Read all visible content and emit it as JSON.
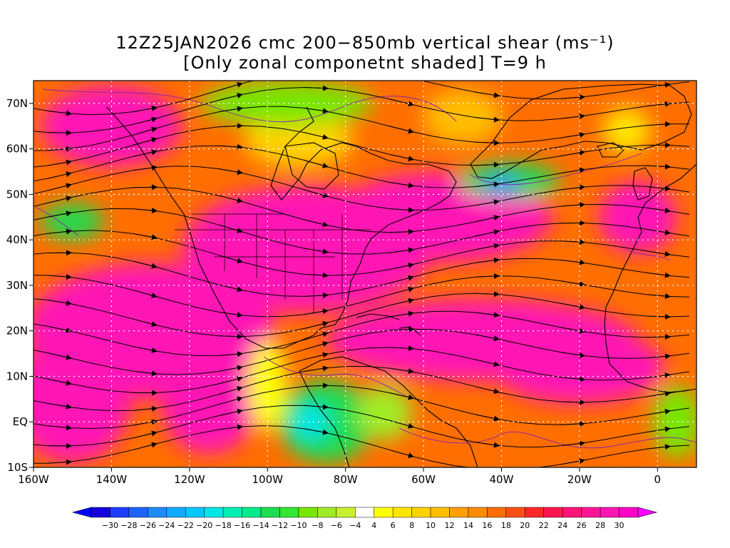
{
  "title": {
    "line1": "12Z25JAN2026 cmc 200−850mb vertical shear (ms⁻¹)",
    "line2": "[Only zonal componetnt shaded] T=9 h"
  },
  "map": {
    "lon_range": [
      -160,
      10
    ],
    "lat_range": [
      -10,
      75
    ],
    "x_ticks": [
      {
        "lon": -160,
        "label": "160W"
      },
      {
        "lon": -140,
        "label": "140W"
      },
      {
        "lon": -120,
        "label": "120W"
      },
      {
        "lon": -100,
        "label": "100W"
      },
      {
        "lon": -80,
        "label": "80W"
      },
      {
        "lon": -60,
        "label": "60W"
      },
      {
        "lon": -40,
        "label": "40W"
      },
      {
        "lon": -20,
        "label": "20W"
      },
      {
        "lon": 0,
        "label": "0"
      }
    ],
    "y_ticks": [
      {
        "lat": 70,
        "label": "70N"
      },
      {
        "lat": 60,
        "label": "60N"
      },
      {
        "lat": 50,
        "label": "50N"
      },
      {
        "lat": 40,
        "label": "40N"
      },
      {
        "lat": 30,
        "label": "30N"
      },
      {
        "lat": 20,
        "label": "20N"
      },
      {
        "lat": 10,
        "label": "10N"
      },
      {
        "lat": 0,
        "label": "EQ"
      },
      {
        "lat": -10,
        "label": "10S"
      }
    ],
    "grid": "dotted white"
  },
  "colorbar": {
    "labels": [
      "−30",
      "−28",
      "−26",
      "−24",
      "−22",
      "−20",
      "−18",
      "−16",
      "−14",
      "−12",
      "−10",
      "−8",
      "−6",
      "−4",
      "4",
      "6",
      "8",
      "10",
      "12",
      "14",
      "16",
      "18",
      "20",
      "22",
      "24",
      "26",
      "28",
      "30"
    ],
    "colors": [
      "#1400dc",
      "#1e3cff",
      "#1e64ff",
      "#1e8cff",
      "#10aaff",
      "#00c8ff",
      "#00e6e6",
      "#00f0b4",
      "#00eb8c",
      "#1edc50",
      "#32e632",
      "#78e600",
      "#a0eb28",
      "#c8f032",
      "#ffffff",
      "#ffff00",
      "#ffe600",
      "#ffd200",
      "#ffbe00",
      "#ffa000",
      "#ff8c00",
      "#ff6e00",
      "#ff5014",
      "#ff2828",
      "#ff1450",
      "#ff1478",
      "#ff1496",
      "#ff14b4",
      "#ff00c8"
    ],
    "low_arrow_color": "#0000ff",
    "high_arrow_color": "#ff00ff"
  },
  "shading": {
    "blobs": [
      {
        "lon": -130,
        "lat": 20,
        "rx": 32,
        "ry": 15,
        "color": "#ff14b4"
      },
      {
        "lon": -150,
        "lat": 5,
        "rx": 15,
        "ry": 14,
        "color": "#ff14b4"
      },
      {
        "lon": -115,
        "lat": 3,
        "rx": 12,
        "ry": 10,
        "color": "#ff14b4"
      },
      {
        "lon": -90,
        "lat": 38,
        "rx": 32,
        "ry": 14,
        "color": "#ff14b4"
      },
      {
        "lon": -55,
        "lat": 45,
        "rx": 28,
        "ry": 10,
        "color": "#ff14b4"
      },
      {
        "lon": -45,
        "lat": 18,
        "rx": 40,
        "ry": 9,
        "color": "#ff14b4"
      },
      {
        "lon": -20,
        "lat": 12,
        "rx": 22,
        "ry": 8,
        "color": "#ff14b4"
      },
      {
        "lon": -140,
        "lat": 65,
        "rx": 18,
        "ry": 9,
        "color": "#ff14b4"
      },
      {
        "lon": -5,
        "lat": 45,
        "rx": 10,
        "ry": 8,
        "color": "#ff14b4"
      },
      {
        "lon": -92,
        "lat": 62,
        "rx": 14,
        "ry": 6,
        "color": "#ffd200"
      },
      {
        "lon": -50,
        "lat": 67,
        "rx": 10,
        "ry": 6,
        "color": "#ffbe00"
      },
      {
        "lon": -95,
        "lat": 70,
        "rx": 22,
        "ry": 5,
        "color": "#78e600"
      },
      {
        "lon": -150,
        "lat": 44,
        "rx": 8,
        "ry": 4,
        "color": "#1edc50"
      },
      {
        "lon": -38,
        "lat": 53,
        "rx": 13,
        "ry": 4,
        "color": "#1edc50"
      },
      {
        "lon": -40,
        "lat": 52,
        "rx": 5,
        "ry": 2,
        "color": "#1e8cff"
      },
      {
        "lon": -85,
        "lat": 0,
        "rx": 12,
        "ry": 9,
        "color": "#1edc50"
      },
      {
        "lon": -89,
        "lat": 0,
        "rx": 5,
        "ry": 4,
        "color": "#00e6e6"
      },
      {
        "lon": -70,
        "lat": 2,
        "rx": 7,
        "ry": 6,
        "color": "#a0eb28"
      },
      {
        "lon": 5,
        "lat": 0,
        "rx": 6,
        "ry": 8,
        "color": "#78e600"
      },
      {
        "lon": -8,
        "lat": 64,
        "rx": 6,
        "ry": 5,
        "color": "#ffe600"
      },
      {
        "lon": -100,
        "lat": 8,
        "rx": 5,
        "ry": 10,
        "color": "#ffff00"
      }
    ]
  }
}
